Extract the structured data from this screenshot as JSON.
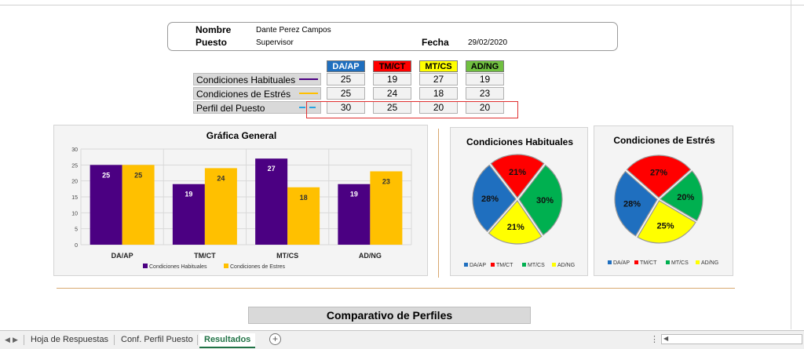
{
  "info": {
    "nombre_label": "Nombre",
    "nombre": "Dante Perez Campos",
    "puesto_label": "Puesto",
    "puesto": "Supervisor",
    "fecha_label": "Fecha",
    "fecha": "29/02/2020"
  },
  "table": {
    "headers": [
      {
        "label": "DA/AP",
        "color": "#1f6fbf"
      },
      {
        "label": "TM/CT",
        "color": "#ff0000"
      },
      {
        "label": "MT/CS",
        "color": "#ffff00"
      },
      {
        "label": "AD/NG",
        "color": "#70c040"
      }
    ],
    "rows": [
      {
        "label": "Condiciones Habituales",
        "values": [
          "25",
          "19",
          "27",
          "19"
        ],
        "line_color": "#4b0082"
      },
      {
        "label": "Condiciones de Estrés",
        "values": [
          "25",
          "24",
          "18",
          "23"
        ],
        "line_color": "#ffc000"
      },
      {
        "label": "Perfil del Puesto",
        "values": [
          "30",
          "25",
          "20",
          "20"
        ],
        "line_color": "#29a3e0"
      }
    ]
  },
  "chart_data": [
    {
      "type": "bar",
      "title": "Gráfica General",
      "categories": [
        "DA/AP",
        "TM/CT",
        "MT/CS",
        "AD/NG"
      ],
      "series": [
        {
          "name": "Condiciones Habituales",
          "values": [
            25,
            19,
            27,
            19
          ],
          "color": "#4b0082"
        },
        {
          "name": "Condiciones de Estres",
          "values": [
            25,
            24,
            18,
            23
          ],
          "color": "#ffc000"
        }
      ],
      "ylim": [
        0,
        30
      ],
      "yticks": [
        "0",
        "5",
        "10",
        "15",
        "20",
        "25",
        "30"
      ],
      "legend": "bottom",
      "grid": true
    },
    {
      "type": "pie",
      "title": "Condiciones Habituales",
      "labels": [
        "DA/AP",
        "TM/CT",
        "MT/CS",
        "AD/NG"
      ],
      "values": [
        28,
        21,
        30,
        21
      ],
      "value_labels": [
        "28%",
        "21%",
        "30%",
        "21%"
      ],
      "colors": [
        "#1f6fbf",
        "#ff0000",
        "#00b050",
        "#ffff00"
      ],
      "legend": "bottom"
    },
    {
      "type": "pie",
      "title": "Condiciones de Estrés",
      "labels": [
        "DA/AP",
        "TM/CT",
        "MT/CS",
        "AD/NG"
      ],
      "values": [
        28,
        27,
        20,
        25
      ],
      "value_labels": [
        "28%",
        "27%",
        "20%",
        "25%"
      ],
      "colors": [
        "#1f6fbf",
        "#ff0000",
        "#00b050",
        "#ffff00"
      ],
      "legend": "bottom"
    }
  ],
  "section_title": "Comparativo de Perfiles",
  "sheet_tabs": {
    "tabs": [
      "Hoja de Respuestas",
      "Conf. Perfil Puesto",
      "Resultados"
    ],
    "active": "Resultados",
    "add_label": "+"
  }
}
